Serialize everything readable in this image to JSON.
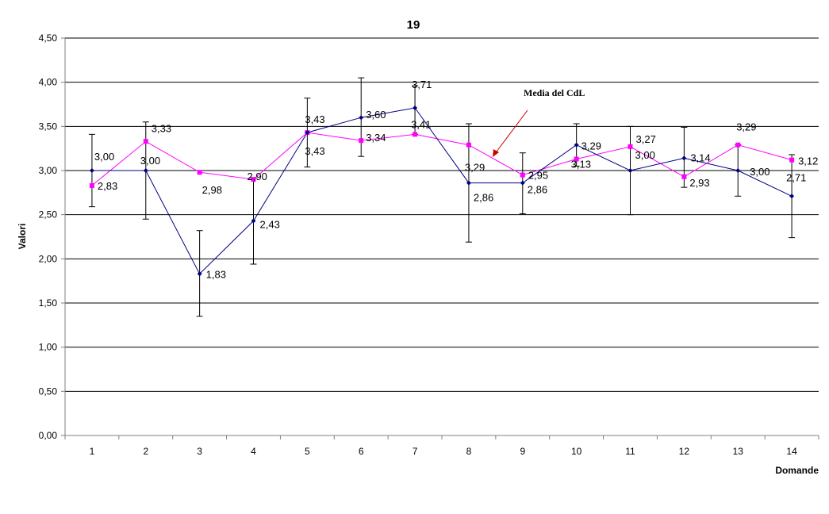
{
  "chart_data": {
    "type": "line",
    "title": "19",
    "xlabel": "Domande",
    "ylabel": "Valori",
    "ylim": [
      0,
      4.5
    ],
    "ytick_step": 0.5,
    "yticks": [
      "0,00",
      "0,50",
      "1,00",
      "1,50",
      "2,00",
      "2,50",
      "3,00",
      "3,50",
      "4,00",
      "4,50"
    ],
    "categories": [
      "1",
      "2",
      "3",
      "4",
      "5",
      "6",
      "7",
      "8",
      "9",
      "10",
      "11",
      "12",
      "13",
      "14"
    ],
    "grid": true,
    "legend": "none",
    "series": [
      {
        "color": "#000080",
        "marker": "diamond",
        "values": [
          3.0,
          3.0,
          1.83,
          2.43,
          3.43,
          3.6,
          3.71,
          2.86,
          2.86,
          3.29,
          3.0,
          3.14,
          3.0,
          2.71
        ],
        "labels": [
          "3,00",
          "3,00",
          "1,83",
          "2,43",
          "3,43",
          "3,60",
          "3,71",
          "2,86",
          "2,86",
          "3,29",
          "3,00",
          "3,14",
          "3,00",
          "2,71"
        ],
        "error_low": [
          2.59,
          2.45,
          1.35,
          1.94,
          3.04,
          3.16,
          3.41,
          2.19,
          2.51,
          3.05,
          2.5,
          2.81,
          2.71,
          2.24
        ],
        "error_high": [
          3.41,
          3.55,
          2.32,
          2.92,
          3.82,
          4.05,
          3.96,
          3.53,
          3.2,
          3.53,
          3.5,
          3.49,
          3.29,
          3.18
        ]
      },
      {
        "color": "#ff00ff",
        "marker": "square",
        "values": [
          2.83,
          3.33,
          2.98,
          2.9,
          3.43,
          3.34,
          3.41,
          3.29,
          2.95,
          3.13,
          3.27,
          2.93,
          3.29,
          3.12
        ],
        "labels": [
          "2,83",
          "3,33",
          "2,98",
          "2,90",
          "3,43",
          "3,34",
          "3,41",
          "3,29",
          "2,95",
          "3,13",
          "3,27",
          "2,93",
          "3,29",
          "3,12"
        ]
      }
    ],
    "annotation": {
      "text": "Media del CdL",
      "arrow_color": "#cc0000"
    }
  }
}
